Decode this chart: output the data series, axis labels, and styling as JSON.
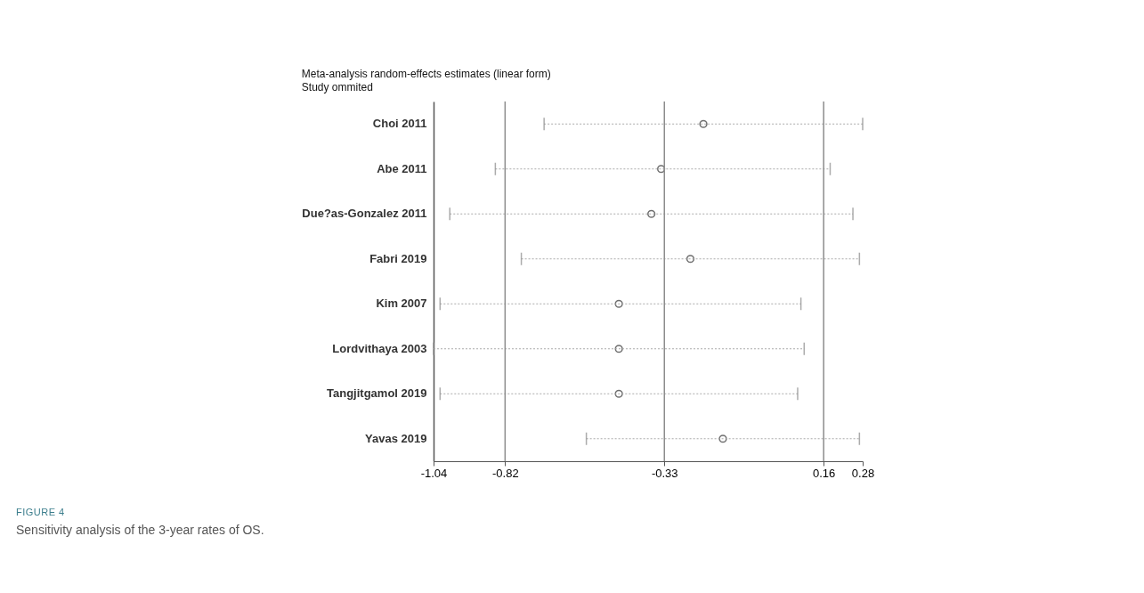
{
  "chart_data": {
    "type": "scatter",
    "orientation": "horizontal",
    "title": "Meta-analysis random-effects estimates (linear form)",
    "subtitle": "Study ommited",
    "categories": [
      "Choi 2011",
      "Abe 2011",
      "Due?as-Gonzalez 2011",
      "Fabri 2019",
      "Kim 2007",
      "Lordvithaya 2003",
      "Tangjitgamol 2019",
      "Yavas 2019"
    ],
    "values": [
      -0.21,
      -0.34,
      -0.37,
      -0.25,
      -0.47,
      -0.47,
      -0.47,
      -0.15
    ],
    "errors": [
      [
        -0.7,
        0.28
      ],
      [
        -0.85,
        0.18
      ],
      [
        -0.99,
        0.25
      ],
      [
        -0.77,
        0.27
      ],
      [
        -1.02,
        0.09
      ],
      [
        -1.04,
        0.1
      ],
      [
        -1.02,
        0.08
      ],
      [
        -0.57,
        0.27
      ]
    ],
    "color": "#6e6e6e",
    "marker": "circle",
    "grid": false,
    "xlim": [
      -1.04,
      0.28
    ],
    "xticks": [
      -1.04,
      -0.82,
      -0.33,
      0.16,
      0.28
    ],
    "ref_lines": [
      {
        "axis": "x",
        "value": -0.82,
        "color": "#8c8c8c"
      },
      {
        "axis": "x",
        "value": -0.33,
        "color": "#8c8c8c"
      },
      {
        "axis": "x",
        "value": 0.16,
        "color": "#8c8c8c"
      }
    ],
    "annotations": [
      "FIGURE 4",
      "Sensitivity analysis of the 3-year rates of OS."
    ]
  }
}
